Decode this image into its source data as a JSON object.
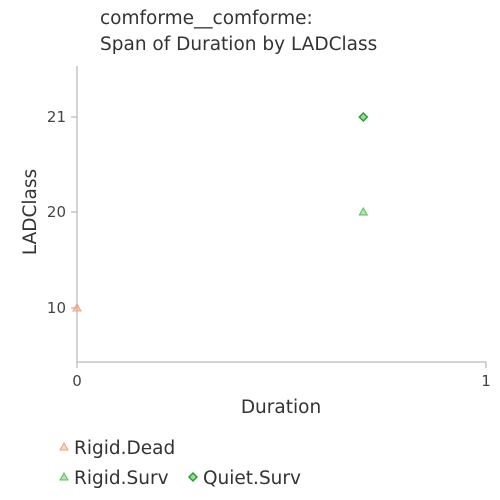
{
  "chart_data": {
    "type": "scatter",
    "title_lines": [
      "comforme__comforme:",
      "Span of Duration by LADClass"
    ],
    "xlabel": "Duration",
    "ylabel": "LADClass",
    "xlim": [
      0,
      1
    ],
    "x_ticks": [
      0,
      1
    ],
    "y_ticks": [
      10,
      20,
      21
    ],
    "y_categories": [
      "10",
      "20",
      "21"
    ],
    "grid": false,
    "legend_position": "bottom",
    "series": [
      {
        "name": "Rigid.Dead",
        "marker": "triangle",
        "color": "#f4a07c",
        "points": [
          {
            "x": 0,
            "y": "10"
          }
        ]
      },
      {
        "name": "Rigid.Surv",
        "marker": "triangle",
        "color": "#5cbf5c",
        "points": [
          {
            "x": 0.7,
            "y": "20"
          }
        ]
      },
      {
        "name": "Quiet.Surv",
        "marker": "diamond",
        "color": "#2ca02c",
        "points": [
          {
            "x": 0.7,
            "y": "21"
          }
        ]
      }
    ]
  }
}
